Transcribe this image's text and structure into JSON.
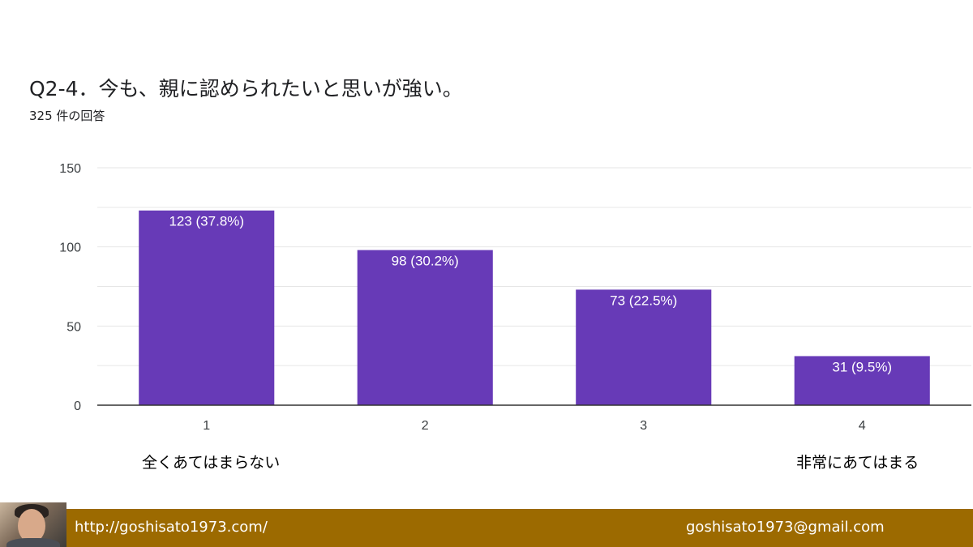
{
  "title": "Q2-4．今も、親に認められたいと思いが強い。",
  "subtitle": "325 件の回答",
  "scale_labels": {
    "low": "全くあてはまらない",
    "high": "非常にあてはまる"
  },
  "footer": {
    "url": "http://goshisato1973.com/",
    "email": "goshisato1973@gmail.com"
  },
  "colors": {
    "bar": "#673ab7",
    "grid": "#e6e6e6",
    "axis": "#333333",
    "footer": "#9c6a00"
  },
  "chart_data": {
    "type": "bar",
    "categories": [
      "1",
      "2",
      "3",
      "4"
    ],
    "values": [
      123,
      98,
      73,
      31
    ],
    "data_labels": [
      "123 (37.8%)",
      "98 (30.2%)",
      "73 (22.5%)",
      "31 (9.5%)"
    ],
    "ylim": [
      0,
      150
    ],
    "yticks": [
      0,
      50,
      100,
      150
    ],
    "grid": true,
    "xlabel": "",
    "ylabel": ""
  }
}
